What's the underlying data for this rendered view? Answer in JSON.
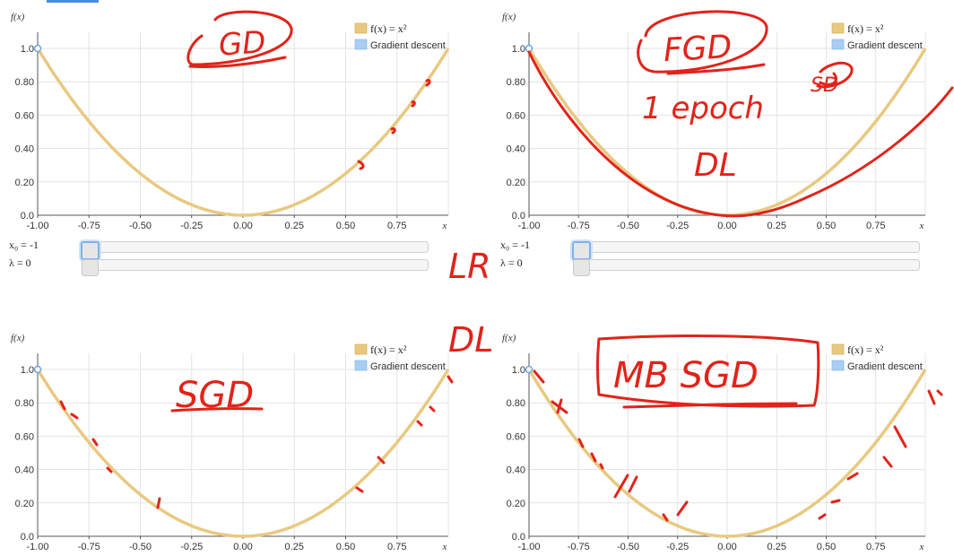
{
  "page": {
    "annotations": {
      "lr": "LR",
      "dl_center": "DL"
    }
  },
  "panels": [
    {
      "annotation": "GD",
      "controls": {
        "x0_label": "x₀ = -1",
        "lambda_label": "λ = 0"
      }
    },
    {
      "annotation": "FGD",
      "annotation_lines": [
        "1 epoch",
        "DL"
      ],
      "annotation_side": "SD",
      "controls": {
        "x0_label": "x₀ = -1",
        "lambda_label": "λ = 0"
      }
    },
    {
      "annotation": "SGD"
    },
    {
      "annotation": "MB SGD"
    }
  ],
  "chart_data": [
    {
      "type": "line",
      "function": "f(x) = x²",
      "ylabel": "f(x)",
      "xlabel": "x",
      "xlim": [
        -1,
        1
      ],
      "ylim": [
        0,
        1
      ],
      "xticks": [
        "-1.00",
        "-0.75",
        "-0.50",
        "-0.25",
        "0.00",
        "0.25",
        "0.50",
        "0.75"
      ],
      "yticks": [
        "0.0",
        "0.20",
        "0.40",
        "0.60",
        "0.80",
        "1.0"
      ],
      "grid": true,
      "legend": "top-right",
      "series": [
        {
          "name": "f(x) = x²",
          "color": "#e8c980",
          "x": [
            -1,
            -0.9,
            -0.8,
            -0.7,
            -0.6,
            -0.5,
            -0.4,
            -0.3,
            -0.2,
            -0.1,
            0,
            0.1,
            0.2,
            0.3,
            0.4,
            0.5,
            0.6,
            0.7,
            0.8,
            0.9,
            1
          ],
          "y": [
            1,
            0.81,
            0.64,
            0.49,
            0.36,
            0.25,
            0.16,
            0.09,
            0.04,
            0.01,
            0,
            0.01,
            0.04,
            0.09,
            0.16,
            0.25,
            0.36,
            0.49,
            0.64,
            0.81,
            1
          ]
        },
        {
          "name": "Gradient descent",
          "color": "#a9cdf3",
          "x": [
            -1
          ],
          "y": [
            1
          ]
        }
      ]
    },
    {
      "type": "line",
      "function": "f(x) = x²",
      "ylabel": "f(x)",
      "xlabel": "x",
      "xlim": [
        -1,
        1
      ],
      "ylim": [
        0,
        1
      ],
      "xticks": [
        "-1.00",
        "-0.75",
        "-0.50",
        "-0.25",
        "0.00",
        "0.25",
        "0.50",
        "0.75"
      ],
      "yticks": [
        "0.0",
        "0.20",
        "0.40",
        "0.60",
        "0.80",
        "1.0"
      ],
      "grid": true,
      "legend": "top-right",
      "series": [
        {
          "name": "f(x) = x²",
          "color": "#e8c980",
          "x": [
            -1,
            -0.9,
            -0.8,
            -0.7,
            -0.6,
            -0.5,
            -0.4,
            -0.3,
            -0.2,
            -0.1,
            0,
            0.1,
            0.2,
            0.3,
            0.4,
            0.5,
            0.6,
            0.7,
            0.8,
            0.9,
            1
          ],
          "y": [
            1,
            0.81,
            0.64,
            0.49,
            0.36,
            0.25,
            0.16,
            0.09,
            0.04,
            0.01,
            0,
            0.01,
            0.04,
            0.09,
            0.16,
            0.25,
            0.36,
            0.49,
            0.64,
            0.81,
            1
          ]
        },
        {
          "name": "Gradient descent",
          "color": "#a9cdf3",
          "x": [
            -1
          ],
          "y": [
            1
          ]
        }
      ]
    },
    {
      "type": "line",
      "function": "f(x) = x²",
      "ylabel": "f(x)",
      "xlabel": "x",
      "xlim": [
        -1,
        1
      ],
      "ylim": [
        0,
        1
      ],
      "xticks": [
        "-1.00",
        "-0.75",
        "-0.50",
        "-0.25",
        "0.00",
        "0.25",
        "0.50",
        "0.75"
      ],
      "yticks": [
        "0.0",
        "0.20",
        "0.40",
        "0.60",
        "0.80",
        "1.0"
      ],
      "grid": true,
      "legend": "top-right",
      "series": [
        {
          "name": "f(x) = x²",
          "color": "#e8c980",
          "x": [
            -1,
            -0.9,
            -0.8,
            -0.7,
            -0.6,
            -0.5,
            -0.4,
            -0.3,
            -0.2,
            -0.1,
            0,
            0.1,
            0.2,
            0.3,
            0.4,
            0.5,
            0.6,
            0.7,
            0.8,
            0.9,
            1
          ],
          "y": [
            1,
            0.81,
            0.64,
            0.49,
            0.36,
            0.25,
            0.16,
            0.09,
            0.04,
            0.01,
            0,
            0.01,
            0.04,
            0.09,
            0.16,
            0.25,
            0.36,
            0.49,
            0.64,
            0.81,
            1
          ]
        },
        {
          "name": "Gradient descent",
          "color": "#a9cdf3",
          "x": [
            -1
          ],
          "y": [
            1
          ]
        }
      ]
    },
    {
      "type": "line",
      "function": "f(x) = x²",
      "ylabel": "f(x)",
      "xlabel": "x",
      "xlim": [
        -1,
        1
      ],
      "ylim": [
        0,
        1
      ],
      "xticks": [
        "-1.00",
        "-0.75",
        "-0.50",
        "-0.25",
        "0.00",
        "0.25",
        "0.50",
        "0.75"
      ],
      "yticks": [
        "0.0",
        "0.20",
        "0.40",
        "0.60",
        "0.80",
        "1.0"
      ],
      "grid": true,
      "legend": "top-right",
      "series": [
        {
          "name": "f(x) = x²",
          "color": "#e8c980",
          "x": [
            -1,
            -0.9,
            -0.8,
            -0.7,
            -0.6,
            -0.5,
            -0.4,
            -0.3,
            -0.2,
            -0.1,
            0,
            0.1,
            0.2,
            0.3,
            0.4,
            0.5,
            0.6,
            0.7,
            0.8,
            0.9,
            1
          ],
          "y": [
            1,
            0.81,
            0.64,
            0.49,
            0.36,
            0.25,
            0.16,
            0.09,
            0.04,
            0.01,
            0,
            0.01,
            0.04,
            0.09,
            0.16,
            0.25,
            0.36,
            0.49,
            0.64,
            0.81,
            1
          ]
        },
        {
          "name": "Gradient descent",
          "color": "#a9cdf3",
          "x": [
            -1
          ],
          "y": [
            1
          ]
        }
      ]
    }
  ]
}
